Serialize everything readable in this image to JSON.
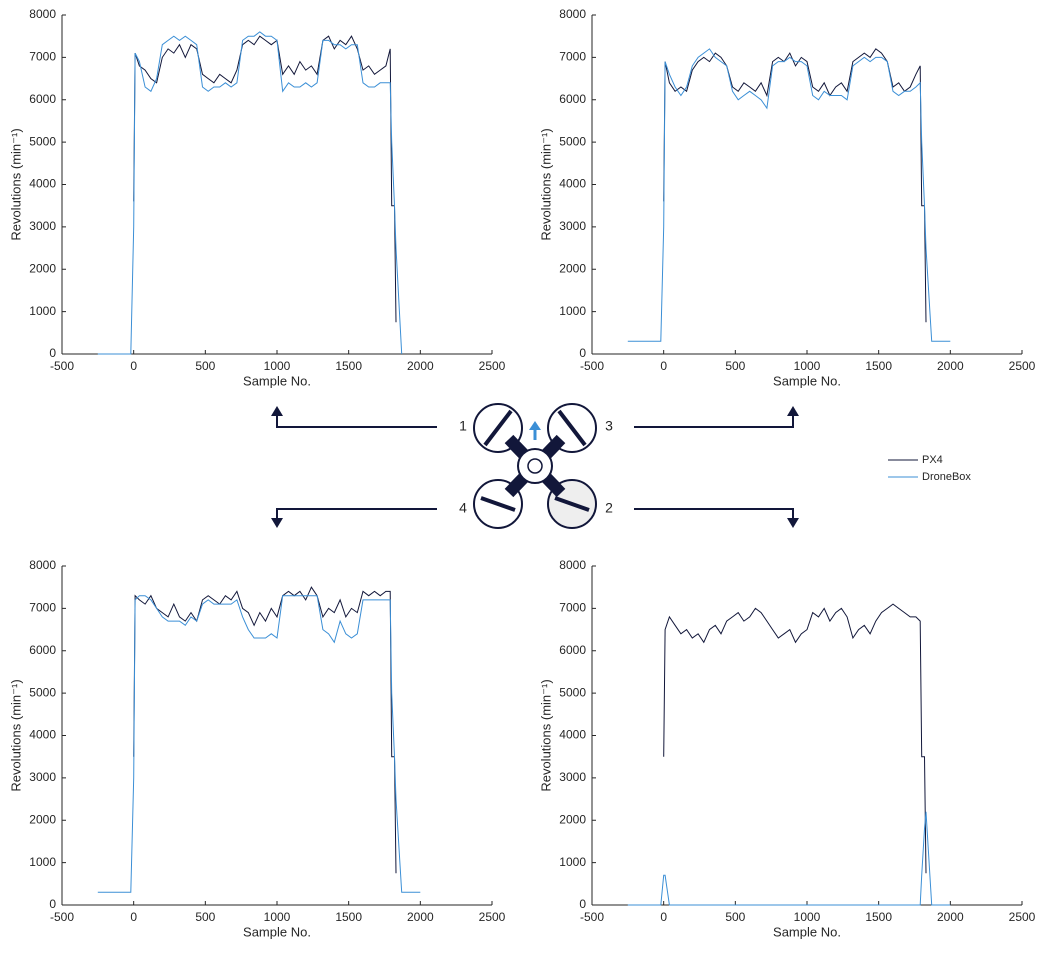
{
  "chart_data": [
    {
      "type": "line",
      "xlabel": "Sample No.",
      "ylabel": "Revolutions (min⁻¹)",
      "xlim": [
        -500,
        2500
      ],
      "ylim": [
        0,
        8000
      ],
      "xticks": [
        -500,
        0,
        500,
        1000,
        1500,
        2000,
        2500
      ],
      "yticks": [
        0,
        1000,
        2000,
        3000,
        4000,
        5000,
        6000,
        7000,
        8000
      ],
      "x": [
        -250,
        -20,
        0,
        10,
        40,
        80,
        120,
        160,
        200,
        240,
        280,
        320,
        360,
        400,
        440,
        480,
        520,
        560,
        600,
        640,
        680,
        720,
        760,
        800,
        840,
        880,
        920,
        960,
        1000,
        1040,
        1080,
        1120,
        1160,
        1200,
        1240,
        1280,
        1320,
        1360,
        1400,
        1440,
        1480,
        1520,
        1560,
        1600,
        1640,
        1680,
        1720,
        1760,
        1790,
        1800,
        1820,
        1830,
        1870,
        2000
      ],
      "series": [
        {
          "values": [
            null,
            null,
            3600,
            7100,
            6800,
            6700,
            6500,
            6400,
            7000,
            7200,
            7100,
            7300,
            7000,
            7300,
            7200,
            6600,
            6500,
            6400,
            6600,
            6500,
            6400,
            6700,
            7300,
            7400,
            7300,
            7500,
            7400,
            7300,
            7400,
            6600,
            6800,
            6600,
            6900,
            6700,
            6800,
            6600,
            7400,
            7500,
            7200,
            7400,
            7300,
            7500,
            7200,
            6700,
            6800,
            6600,
            6700,
            6800,
            7200,
            3500,
            3500,
            750,
            null,
            null
          ]
        },
        {
          "values": [
            0,
            0,
            3000,
            7100,
            6900,
            6300,
            6200,
            6500,
            7300,
            7400,
            7500,
            7400,
            7500,
            7400,
            7300,
            6300,
            6200,
            6300,
            6300,
            6400,
            6300,
            6400,
            7400,
            7500,
            7500,
            7600,
            7500,
            7500,
            7400,
            6200,
            6400,
            6300,
            6300,
            6400,
            6300,
            6400,
            7400,
            7400,
            7300,
            7300,
            7200,
            7300,
            7300,
            6400,
            6300,
            6300,
            6400,
            6400,
            6400,
            5000,
            3500,
            2500,
            0,
            null
          ]
        }
      ]
    },
    {
      "type": "line",
      "xlabel": "Sample No.",
      "ylabel": "Revolutions (min⁻¹)",
      "xlim": [
        -500,
        2500
      ],
      "ylim": [
        0,
        8000
      ],
      "xticks": [
        -500,
        0,
        500,
        1000,
        1500,
        2000,
        2500
      ],
      "yticks": [
        0,
        1000,
        2000,
        3000,
        4000,
        5000,
        6000,
        7000,
        8000
      ],
      "x": [
        -250,
        -20,
        0,
        10,
        40,
        80,
        120,
        160,
        200,
        240,
        280,
        320,
        360,
        400,
        440,
        480,
        520,
        560,
        600,
        640,
        680,
        720,
        760,
        800,
        840,
        880,
        920,
        960,
        1000,
        1040,
        1080,
        1120,
        1160,
        1200,
        1240,
        1280,
        1320,
        1360,
        1400,
        1440,
        1480,
        1520,
        1560,
        1600,
        1640,
        1680,
        1720,
        1760,
        1790,
        1800,
        1820,
        1830,
        1870,
        2000
      ],
      "series": [
        {
          "values": [
            null,
            null,
            3600,
            6900,
            6400,
            6200,
            6300,
            6200,
            6700,
            6900,
            7000,
            6900,
            7100,
            7000,
            6800,
            6300,
            6200,
            6400,
            6300,
            6200,
            6400,
            6100,
            6900,
            7000,
            6900,
            7100,
            6800,
            7000,
            6900,
            6300,
            6200,
            6400,
            6100,
            6300,
            6400,
            6200,
            6900,
            7000,
            7100,
            7000,
            7200,
            7100,
            6900,
            6300,
            6400,
            6200,
            6300,
            6600,
            6800,
            3500,
            3500,
            750,
            null,
            null
          ]
        },
        {
          "values": [
            300,
            300,
            3000,
            6900,
            6600,
            6300,
            6100,
            6300,
            6800,
            7000,
            7100,
            7200,
            7000,
            6900,
            6800,
            6200,
            6000,
            6100,
            6200,
            6100,
            6000,
            5800,
            6800,
            6900,
            6900,
            7000,
            6900,
            6900,
            6800,
            6100,
            6000,
            6200,
            6100,
            6100,
            6100,
            6000,
            6800,
            6900,
            7000,
            6900,
            7000,
            7000,
            6900,
            6200,
            6100,
            6200,
            6200,
            6300,
            6400,
            5000,
            3500,
            2500,
            300,
            300
          ]
        }
      ]
    },
    {
      "type": "line",
      "xlabel": "Sample No.",
      "ylabel": "Revolutions (min⁻¹)",
      "xlim": [
        -500,
        2500
      ],
      "ylim": [
        0,
        8000
      ],
      "xticks": [
        -500,
        0,
        500,
        1000,
        1500,
        2000,
        2500
      ],
      "yticks": [
        0,
        1000,
        2000,
        3000,
        4000,
        5000,
        6000,
        7000,
        8000
      ],
      "x": [
        -250,
        -20,
        0,
        10,
        40,
        80,
        120,
        160,
        200,
        240,
        280,
        320,
        360,
        400,
        440,
        480,
        520,
        560,
        600,
        640,
        680,
        720,
        760,
        800,
        840,
        880,
        920,
        960,
        1000,
        1040,
        1080,
        1120,
        1160,
        1200,
        1240,
        1280,
        1320,
        1360,
        1400,
        1440,
        1480,
        1520,
        1560,
        1600,
        1640,
        1680,
        1720,
        1760,
        1790,
        1800,
        1820,
        1830,
        1870,
        2000
      ],
      "series": [
        {
          "values": [
            null,
            null,
            3500,
            7300,
            7200,
            7100,
            7300,
            7000,
            6900,
            6800,
            7100,
            6800,
            6700,
            6900,
            6700,
            7200,
            7300,
            7200,
            7100,
            7300,
            7200,
            7400,
            7000,
            6900,
            6600,
            6900,
            6700,
            7000,
            6800,
            7300,
            7400,
            7300,
            7400,
            7200,
            7500,
            7300,
            6800,
            7000,
            6900,
            7200,
            6800,
            7000,
            6900,
            7400,
            7300,
            7400,
            7300,
            7400,
            7400,
            3500,
            3500,
            750,
            null,
            null
          ]
        },
        {
          "values": [
            300,
            300,
            3000,
            7200,
            7300,
            7300,
            7200,
            7000,
            6800,
            6700,
            6700,
            6700,
            6600,
            6800,
            6700,
            7100,
            7200,
            7100,
            7100,
            7100,
            7100,
            7200,
            6800,
            6500,
            6300,
            6300,
            6300,
            6400,
            6300,
            7300,
            7300,
            7300,
            7300,
            7300,
            7300,
            7300,
            6500,
            6400,
            6200,
            6700,
            6400,
            6300,
            6400,
            7200,
            7200,
            7200,
            7200,
            7200,
            7200,
            5000,
            3500,
            2500,
            300,
            300
          ]
        }
      ]
    },
    {
      "type": "line",
      "xlabel": "Sample No.",
      "ylabel": "Revolutions (min⁻¹)",
      "xlim": [
        -500,
        2500
      ],
      "ylim": [
        0,
        8000
      ],
      "xticks": [
        -500,
        0,
        500,
        1000,
        1500,
        2000,
        2500
      ],
      "yticks": [
        0,
        1000,
        2000,
        3000,
        4000,
        5000,
        6000,
        7000,
        8000
      ],
      "x": [
        -250,
        -20,
        0,
        10,
        40,
        80,
        120,
        160,
        200,
        240,
        280,
        320,
        360,
        400,
        440,
        480,
        520,
        560,
        600,
        640,
        680,
        720,
        760,
        800,
        840,
        880,
        920,
        960,
        1000,
        1040,
        1080,
        1120,
        1160,
        1200,
        1240,
        1280,
        1320,
        1360,
        1400,
        1440,
        1480,
        1520,
        1560,
        1600,
        1640,
        1680,
        1720,
        1760,
        1790,
        1800,
        1820,
        1830,
        1870,
        2000
      ],
      "series": [
        {
          "values": [
            null,
            null,
            3500,
            6500,
            6800,
            6600,
            6400,
            6500,
            6300,
            6400,
            6200,
            6500,
            6600,
            6400,
            6700,
            6800,
            6900,
            6700,
            6800,
            7000,
            6900,
            6700,
            6500,
            6300,
            6400,
            6500,
            6200,
            6400,
            6500,
            6900,
            6800,
            7000,
            6700,
            6900,
            7000,
            6800,
            6300,
            6500,
            6600,
            6400,
            6700,
            6900,
            7000,
            7100,
            7000,
            6900,
            6800,
            6800,
            6700,
            3500,
            3500,
            750,
            null,
            null
          ]
        },
        {
          "values": [
            0,
            0,
            700,
            700,
            0,
            0,
            0,
            0,
            0,
            0,
            0,
            0,
            0,
            0,
            0,
            0,
            0,
            0,
            0,
            0,
            0,
            0,
            0,
            0,
            0,
            0,
            0,
            0,
            0,
            0,
            0,
            0,
            0,
            0,
            0,
            0,
            0,
            0,
            0,
            0,
            0,
            0,
            0,
            0,
            0,
            0,
            0,
            0,
            0,
            700,
            1800,
            2200,
            0,
            0
          ]
        }
      ]
    }
  ],
  "legend": [
    {
      "name": "PX4",
      "color": "#12173a"
    },
    {
      "name": "DroneBox",
      "color": "#3b8fd6"
    }
  ],
  "motor_labels": [
    "1",
    "3",
    "4",
    "2"
  ]
}
